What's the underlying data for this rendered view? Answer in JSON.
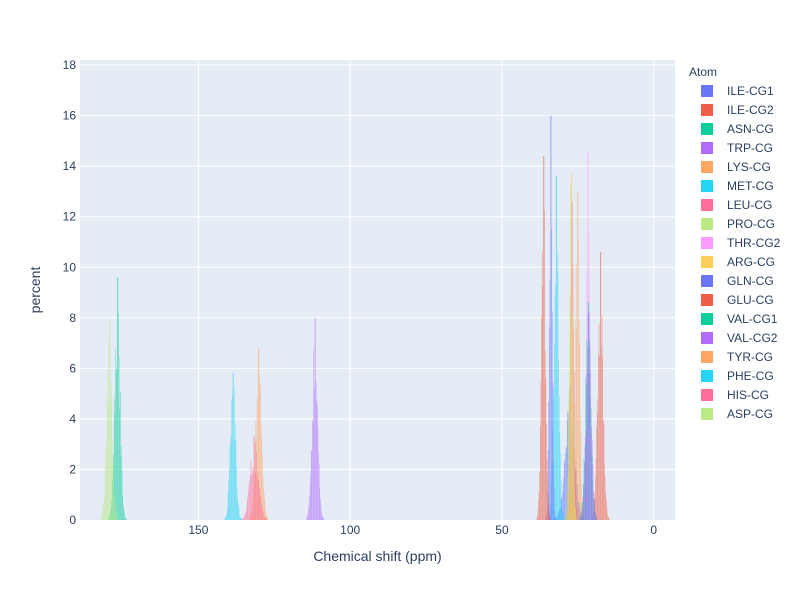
{
  "chart_data": {
    "type": "bar",
    "xlabel": "Chemical shift (ppm)",
    "ylabel": "percent",
    "x_axis_reversed": true,
    "xlim": [
      -7,
      189
    ],
    "ylim": [
      0,
      18.2
    ],
    "x_ticks": [
      150,
      100,
      50,
      0
    ],
    "y_ticks": [
      0,
      2,
      4,
      6,
      8,
      10,
      12,
      14,
      16,
      18
    ],
    "grid": true,
    "plot_bg": "#e5ecf6",
    "bar_opacity": 0.55,
    "legend": {
      "title": "Atom",
      "position": "right"
    },
    "series": [
      {
        "name": "ILE-CG1",
        "color": "#636efa",
        "center": 27.5,
        "sigma": 1.6,
        "peak": 5.2
      },
      {
        "name": "ILE-CG2",
        "color": "#ef553b",
        "center": 17.5,
        "sigma": 0.9,
        "peak": 10.6
      },
      {
        "name": "ASN-CG",
        "color": "#00cc96",
        "center": 176.6,
        "sigma": 0.9,
        "peak": 9.6
      },
      {
        "name": "TRP-CG",
        "color": "#ab63fa",
        "center": 111.5,
        "sigma": 0.9,
        "peak": 8.0
      },
      {
        "name": "LYS-CG",
        "color": "#ffa15a",
        "center": 25.0,
        "sigma": 0.7,
        "peak": 13.0
      },
      {
        "name": "MET-CG",
        "color": "#19d3f3",
        "center": 32.0,
        "sigma": 0.8,
        "peak": 13.6
      },
      {
        "name": "LEU-CG",
        "color": "#ff6692",
        "center": 26.8,
        "sigma": 0.6,
        "peak": 12.6
      },
      {
        "name": "PRO-CG",
        "color": "#b6e880",
        "center": 27.2,
        "sigma": 0.6,
        "peak": 13.2
      },
      {
        "name": "THR-CG2",
        "color": "#ff97ff",
        "center": 21.6,
        "sigma": 0.6,
        "peak": 14.6
      },
      {
        "name": "ARG-CG",
        "color": "#fecb52",
        "center": 27.0,
        "sigma": 0.5,
        "peak": 13.7
      },
      {
        "name": "GLN-CG",
        "color": "#636efa",
        "center": 33.8,
        "sigma": 0.5,
        "peak": 16.0
      },
      {
        "name": "GLU-CG",
        "color": "#ef553b",
        "center": 36.2,
        "sigma": 0.7,
        "peak": 14.4
      },
      {
        "name": "VAL-CG1",
        "color": "#00cc96",
        "center": 21.5,
        "sigma": 0.9,
        "peak": 8.6
      },
      {
        "name": "VAL-CG2",
        "color": "#ab63fa",
        "center": 21.3,
        "sigma": 0.9,
        "peak": 8.2
      },
      {
        "name": "TYR-CG",
        "color": "#ffa15a",
        "center": 130.0,
        "sigma": 1.0,
        "peak": 6.8
      },
      {
        "name": "PHE-CG",
        "color": "#19d3f3",
        "center": 138.5,
        "sigma": 0.9,
        "peak": 5.8
      },
      {
        "name": "HIS-CG",
        "color": "#ff6692",
        "center": 131.5,
        "sigma": 1.4,
        "peak": 3.3
      },
      {
        "name": "ASP-CG",
        "color": "#b6e880",
        "center": 179.2,
        "sigma": 0.9,
        "peak": 7.9
      }
    ]
  }
}
